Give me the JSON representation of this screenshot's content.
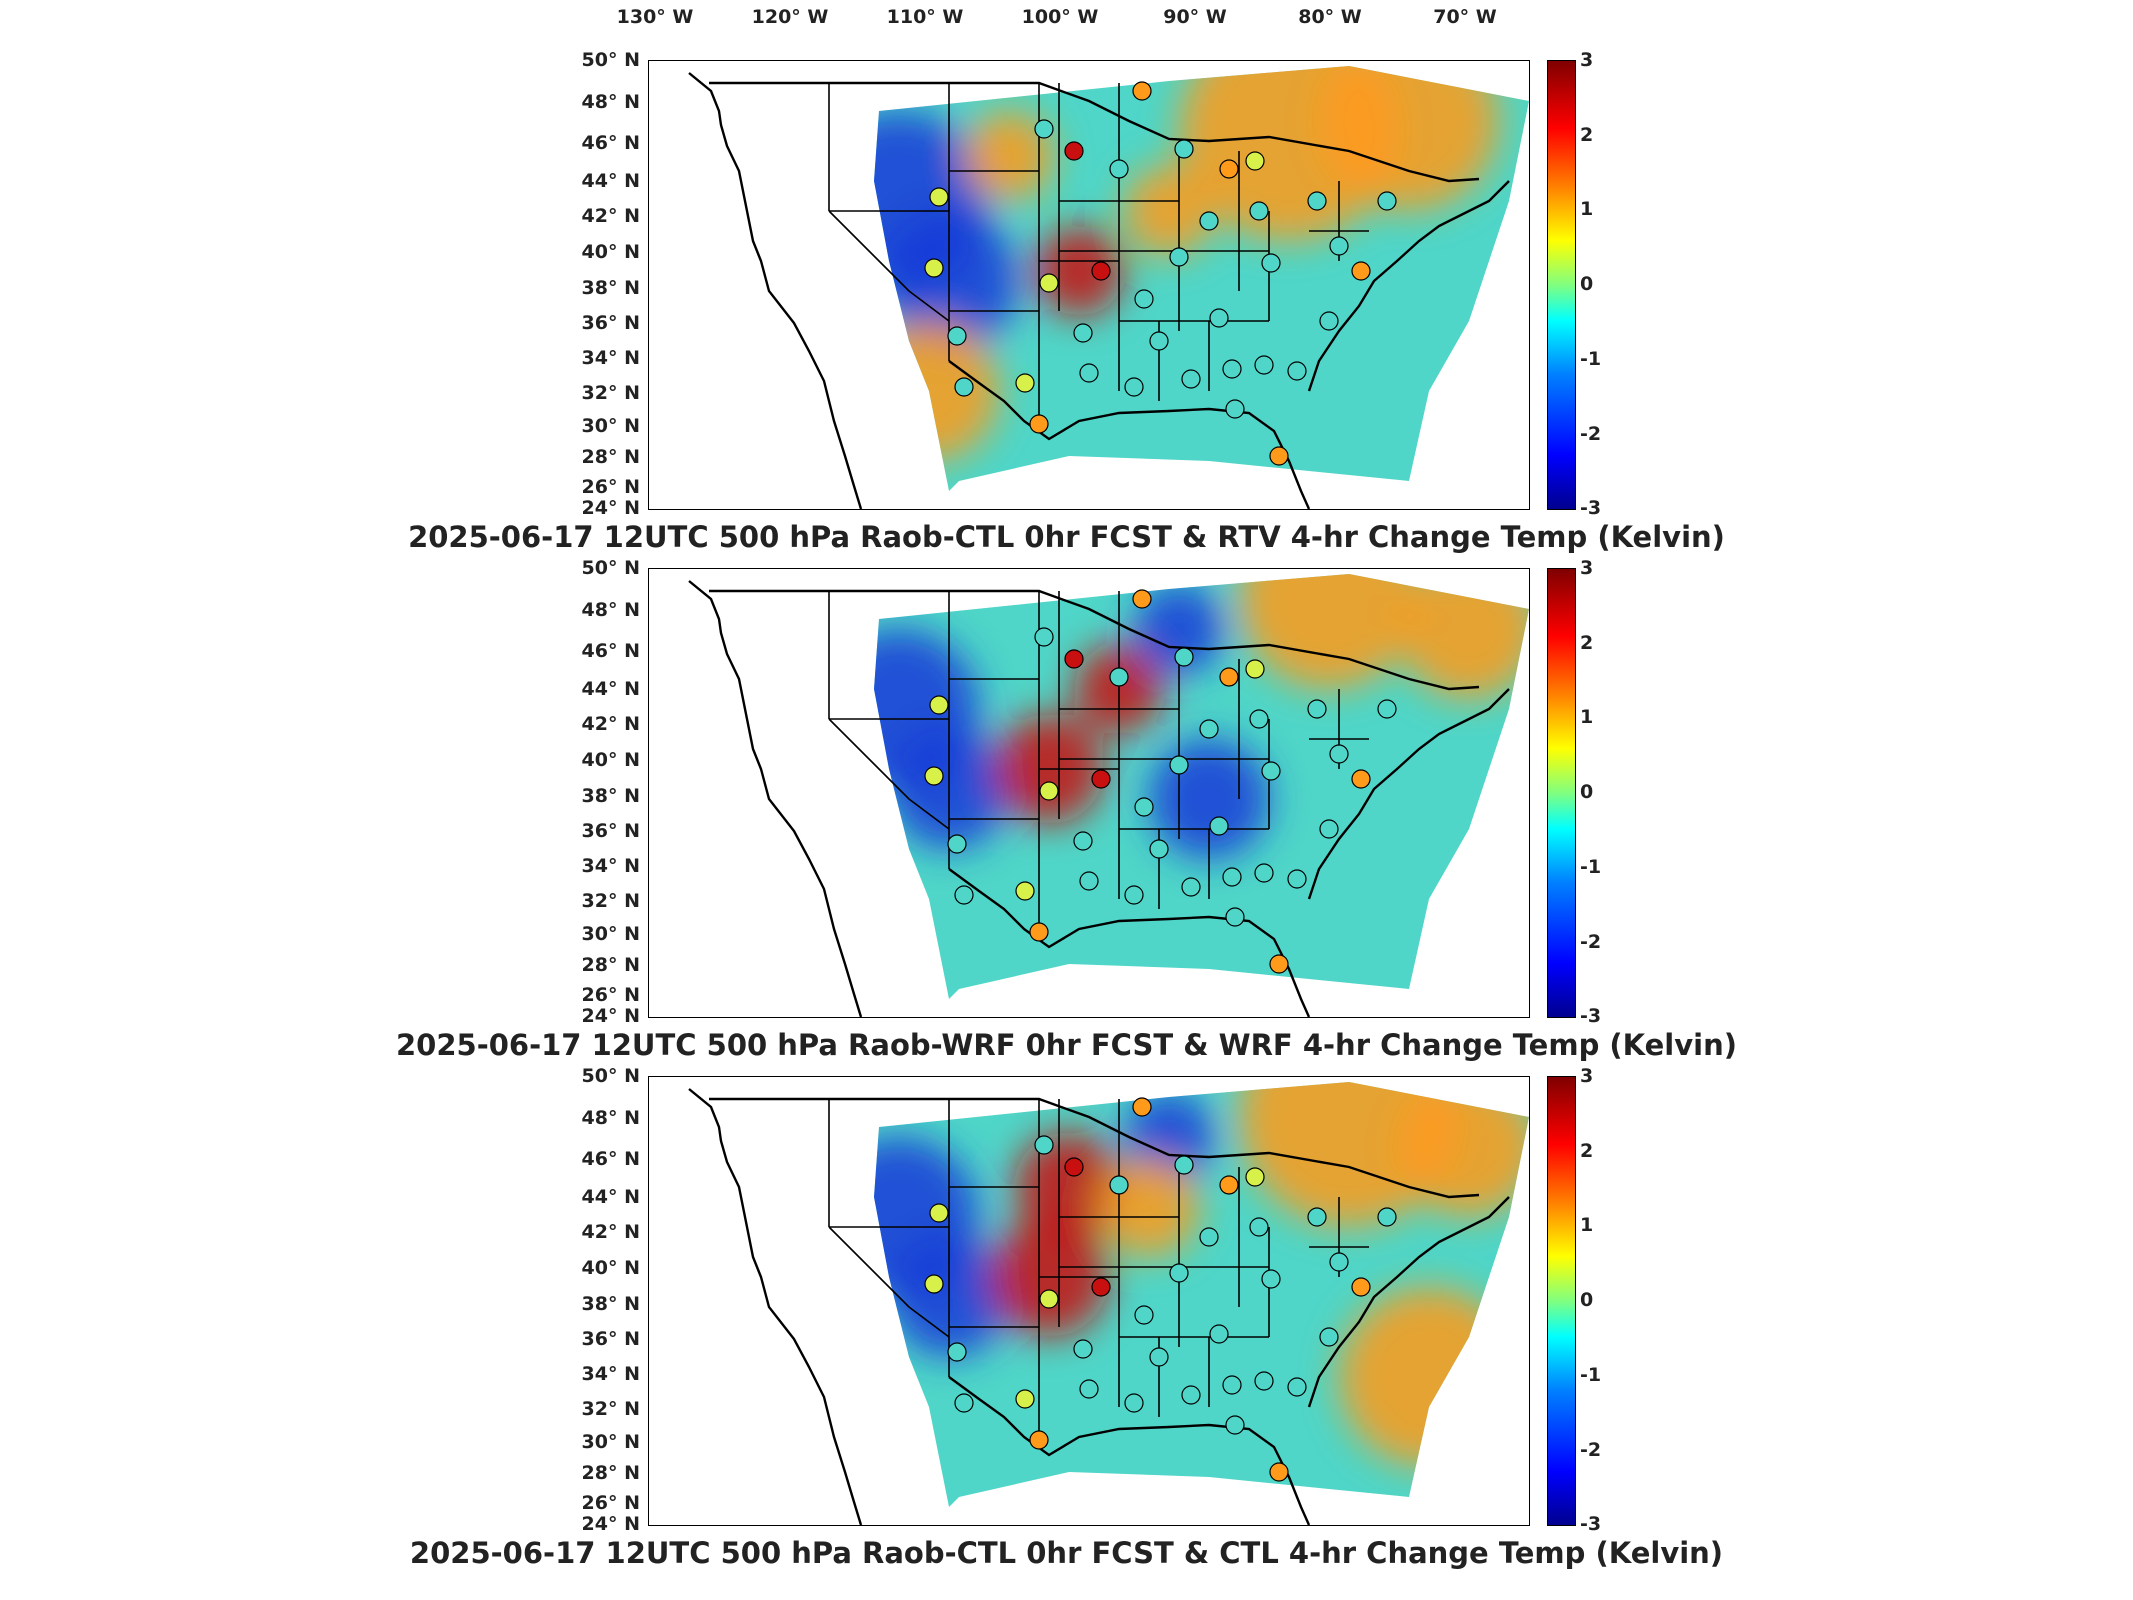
{
  "lon_labels": [
    "130° W",
    "120° W",
    "110° W",
    "100° W",
    "90° W",
    "80° W",
    "70° W"
  ],
  "lat_labels": [
    "50° N",
    "48° N",
    "46° N",
    "44° N",
    "42° N",
    "40° N",
    "38° N",
    "36° N",
    "34° N",
    "32° N",
    "30° N",
    "28° N",
    "26° N",
    "24° N"
  ],
  "colorbar": {
    "ticks": [
      "3",
      "2",
      "1",
      "0",
      "-1",
      "-2",
      "-3"
    ],
    "colormap": "jet"
  },
  "panels": [
    {
      "title": "2025-06-17 12UTC 500 hPa Raob-CTL 0hr FCST & RTV 4-hr Change Temp (Kelvin)"
    },
    {
      "title": "2025-06-17 12UTC 500 hPa Raob-WRF 0hr FCST & WRF 4-hr Change Temp (Kelvin)"
    },
    {
      "title": "2025-06-17 12UTC 500 hPa Raob-CTL 0hr FCST & CTL 4-hr Change Temp (Kelvin)"
    }
  ],
  "colors": {
    "field_base": "#4fd6c8",
    "warm": "#ff9a1a",
    "hot": "#c81010",
    "cold": "#1438d8",
    "coast": "#000000"
  }
}
